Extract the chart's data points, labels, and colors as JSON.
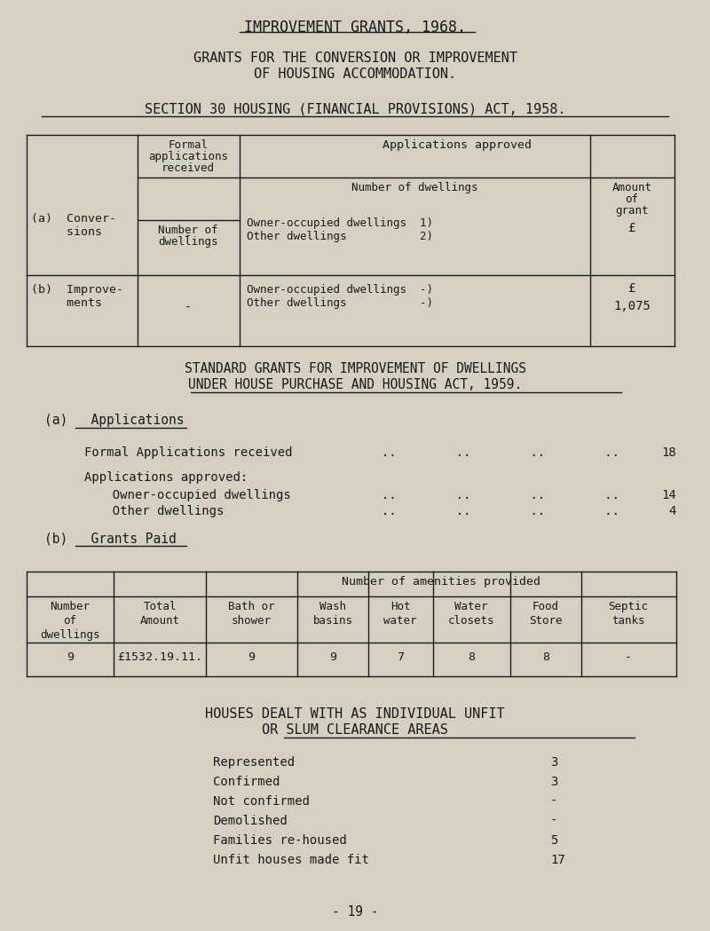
{
  "bg_color": "#d5d0c2",
  "text_color": "#1a1a1a",
  "title1": "IMPROVEMENT GRANTS, 1968.",
  "title2_line1": "GRANTS FOR THE CONVERSION OR IMPROVEMENT",
  "title2_line2": "OF HOUSING ACCOMMODATION.",
  "title3": "SECTION 30 HOUSING (FINANCIAL PROVISIONS) ACT, 1958.",
  "section2_title1": "STANDARD GRANTS FOR IMPROVEMENT OF DWELLINGS",
  "section2_title2": "UNDER HOUSE PURCHASE AND HOUSING ACT, 1959.",
  "section2_a_label": "(a)   Applications",
  "section2_formal": "Formal Applications received",
  "section2_formal_val": "18",
  "section2_approved": "Applications approved:",
  "section2_owner": "  Owner-occupied dwellings",
  "section2_owner_val": "14",
  "section2_other": "  Other dwellings",
  "section2_other_val": "4",
  "section2_b_label": "(b)   Grants Paid",
  "table2_subheader": "Number of amenities provided",
  "table2_data": [
    "9",
    "£1532.19.11.",
    "9",
    "9",
    "7",
    "8",
    "8",
    "-"
  ],
  "section3_title1": "HOUSES DEALT WITH AS INDIVIDUAL UNFIT",
  "section3_title2": "OR SLUM CLEARANCE AREAS",
  "section3_rows": [
    [
      "Represented",
      "3"
    ],
    [
      "Confirmed",
      "3"
    ],
    [
      "Not confirmed",
      "-"
    ],
    [
      "Demolished",
      "-"
    ],
    [
      "Families re-housed",
      "5"
    ],
    [
      "Unfit houses made fit",
      "17"
    ]
  ],
  "footer": "- 19 -"
}
